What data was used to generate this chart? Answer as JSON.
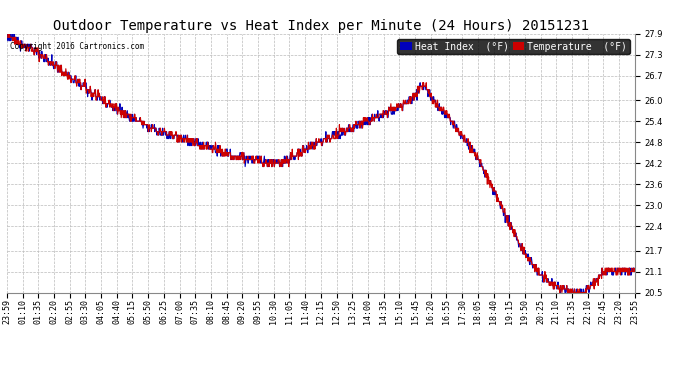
{
  "title": "Outdoor Temperature vs Heat Index per Minute (24 Hours) 20151231",
  "copyright": "Copyright 2016 Cartronics.com",
  "legend_heat_index": "Heat Index  (°F)",
  "legend_temperature": "Temperature  (°F)",
  "heat_index_color": "#0000bb",
  "temperature_color": "#cc0000",
  "background_color": "#ffffff",
  "grid_color": "#bbbbbb",
  "ylim": [
    20.5,
    27.9
  ],
  "yticks": [
    20.5,
    21.1,
    21.7,
    22.4,
    23.0,
    23.6,
    24.2,
    24.8,
    25.4,
    26.0,
    26.7,
    27.3,
    27.9
  ],
  "xtick_labels": [
    "23:59",
    "01:10",
    "01:35",
    "02:20",
    "02:55",
    "03:30",
    "04:05",
    "04:40",
    "05:15",
    "05:50",
    "06:25",
    "07:00",
    "07:35",
    "08:10",
    "08:45",
    "09:20",
    "09:55",
    "10:30",
    "11:05",
    "11:40",
    "12:15",
    "12:50",
    "13:25",
    "14:00",
    "14:35",
    "15:10",
    "15:45",
    "16:20",
    "16:55",
    "17:30",
    "18:05",
    "18:40",
    "19:15",
    "19:50",
    "20:25",
    "21:10",
    "21:35",
    "22:10",
    "22:45",
    "23:20",
    "23:55"
  ],
  "line_width": 0.8,
  "title_fontsize": 10,
  "tick_fontsize": 6,
  "legend_fontsize": 7
}
